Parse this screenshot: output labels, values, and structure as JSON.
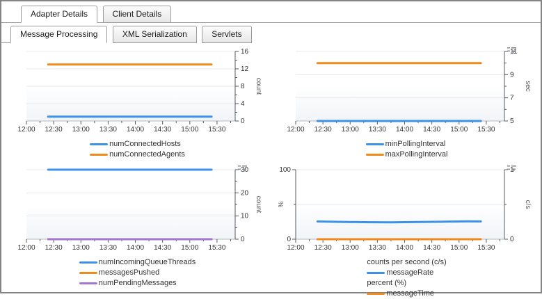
{
  "tabs": {
    "outer": [
      {
        "label": "Adapter Details",
        "active": true
      },
      {
        "label": "Client Details",
        "active": false
      }
    ],
    "inner": [
      {
        "label": "Message Processing",
        "active": true
      },
      {
        "label": "XML Serialization",
        "active": false
      },
      {
        "label": "Servlets",
        "active": false
      }
    ]
  },
  "colors": {
    "blue": "#3B92E8",
    "orange": "#EF8B1B",
    "purple": "#A277CE",
    "grid": "#e7eaef",
    "axis": "#55595e",
    "baseline": "#b3b8bd",
    "tick_text": "#333333",
    "axis_title": "#555555",
    "plot_bg_top": "#ffffff",
    "plot_bg_bottom": "#f1f4f8"
  },
  "x_axis": {
    "tick_labels": [
      "12:00",
      "12:30",
      "13:00",
      "13:30",
      "14:00",
      "14:30",
      "15:00",
      "15:30"
    ],
    "major_ticks_min": [
      0,
      30,
      60,
      90,
      120,
      150,
      180,
      210
    ],
    "minor_ticks_min": [
      15,
      45,
      75,
      105,
      135,
      165,
      195,
      225
    ],
    "domain_max": 230
  },
  "chart_data": [
    {
      "type": "line",
      "menu_icon": false,
      "right_axis": {
        "label": "count",
        "min": 0,
        "max": 16,
        "major_ticks": [
          0,
          4,
          8,
          12,
          16
        ],
        "minor_ticks": [
          2,
          6,
          10,
          14
        ]
      },
      "grid_axis": "right",
      "gridlines": [
        4,
        8,
        12,
        16
      ],
      "series": [
        {
          "name": "numConnectedHosts",
          "color": "blue",
          "axis": "right",
          "points": [
            [
              24,
              1
            ],
            [
              204,
              1
            ]
          ]
        },
        {
          "name": "numConnectedAgents",
          "color": "orange",
          "axis": "right",
          "points": [
            [
              24,
              13
            ],
            [
              204,
              13
            ]
          ]
        }
      ],
      "legend": [
        {
          "series": 0
        },
        {
          "series": 1
        }
      ]
    },
    {
      "type": "line",
      "menu_icon": true,
      "right_axis": {
        "label": "sec",
        "min": 5,
        "max": 11,
        "major_ticks": [
          5,
          7,
          9,
          11
        ],
        "minor_ticks": [
          6,
          8,
          10
        ]
      },
      "grid_axis": "right",
      "gridlines": [
        7,
        9,
        11
      ],
      "series": [
        {
          "name": "minPollingInterval",
          "color": "blue",
          "axis": "right",
          "points": [
            [
              24,
              5
            ],
            [
              204,
              5
            ]
          ]
        },
        {
          "name": "maxPollingInterval",
          "color": "orange",
          "axis": "right",
          "points": [
            [
              24,
              10
            ],
            [
              204,
              10
            ]
          ]
        }
      ],
      "legend": [
        {
          "series": 0
        },
        {
          "series": 1
        }
      ]
    },
    {
      "type": "line",
      "menu_icon": true,
      "right_axis": {
        "label": "count",
        "min": 0,
        "max": 30,
        "major_ticks": [
          0,
          10,
          20,
          30
        ],
        "minor_ticks": [
          5,
          15,
          25
        ]
      },
      "grid_axis": "right",
      "gridlines": [
        10,
        20,
        30
      ],
      "series": [
        {
          "name": "numIncomingQueueThreads",
          "color": "blue",
          "axis": "right",
          "points": [
            [
              24,
              30
            ],
            [
              204,
              30
            ]
          ]
        },
        {
          "name": "messagesPushed",
          "color": "orange",
          "axis": "right",
          "points": [
            [
              24,
              0
            ],
            [
              204,
              0
            ]
          ]
        },
        {
          "name": "numPendingMessages",
          "color": "purple",
          "axis": "right",
          "points": [
            [
              24,
              0
            ],
            [
              204,
              0
            ]
          ]
        }
      ],
      "legend": [
        {
          "series": 0
        },
        {
          "series": 1
        },
        {
          "series": 2
        }
      ]
    },
    {
      "type": "line",
      "menu_icon": true,
      "left_axis": {
        "label": "%",
        "min": 0,
        "max": 100,
        "major_ticks": [
          0,
          100
        ],
        "minor_ticks": [
          50
        ]
      },
      "right_axis": {
        "label": "c/s",
        "min": 0,
        "max": 1,
        "major_ticks": [
          0,
          1
        ],
        "minor_ticks": [
          0.5
        ]
      },
      "grid_axis": "right",
      "gridlines": [
        0.5,
        1
      ],
      "series": [
        {
          "name": "messageRate",
          "color": "blue",
          "axis": "right",
          "points": [
            [
              24,
              0.255
            ],
            [
              45,
              0.25
            ],
            [
              75,
              0.245
            ],
            [
              105,
              0.242
            ],
            [
              135,
              0.248
            ],
            [
              165,
              0.252
            ],
            [
              190,
              0.256
            ],
            [
              204,
              0.255
            ]
          ]
        },
        {
          "name": "messageTime",
          "color": "orange",
          "axis": "left",
          "points": [
            [
              24,
              0
            ],
            [
              204,
              0
            ]
          ]
        }
      ],
      "legend": [
        {
          "header": "counts per second (c/s)"
        },
        {
          "series": 0
        },
        {
          "header": "percent (%)"
        },
        {
          "series": 1
        }
      ]
    }
  ]
}
